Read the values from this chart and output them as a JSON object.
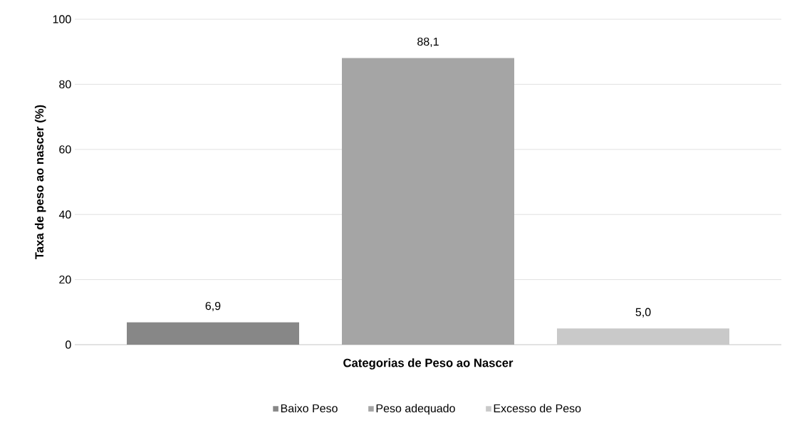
{
  "chart_data": {
    "type": "bar",
    "xlabel": "Categorias de Peso ao Nascer",
    "ylabel": "Taxa de peso ao nascer (%)",
    "categories": [
      null
    ],
    "series": [
      {
        "name": "Baixo Peso",
        "color": "#878787",
        "values": [
          6.9
        ],
        "value_labels": [
          "6,9"
        ]
      },
      {
        "name": "Peso adequado",
        "color": "#a5a5a5",
        "values": [
          88.1
        ],
        "value_labels": [
          "88,1"
        ]
      },
      {
        "name": "Excesso de Peso",
        "color": "#c9c9c9",
        "values": [
          5.0
        ],
        "value_labels": [
          "5,0"
        ]
      }
    ],
    "ylim": [
      0,
      100
    ],
    "yticks": [
      0,
      20,
      40,
      60,
      80,
      100
    ],
    "grid": "y",
    "legend": "bottom"
  }
}
